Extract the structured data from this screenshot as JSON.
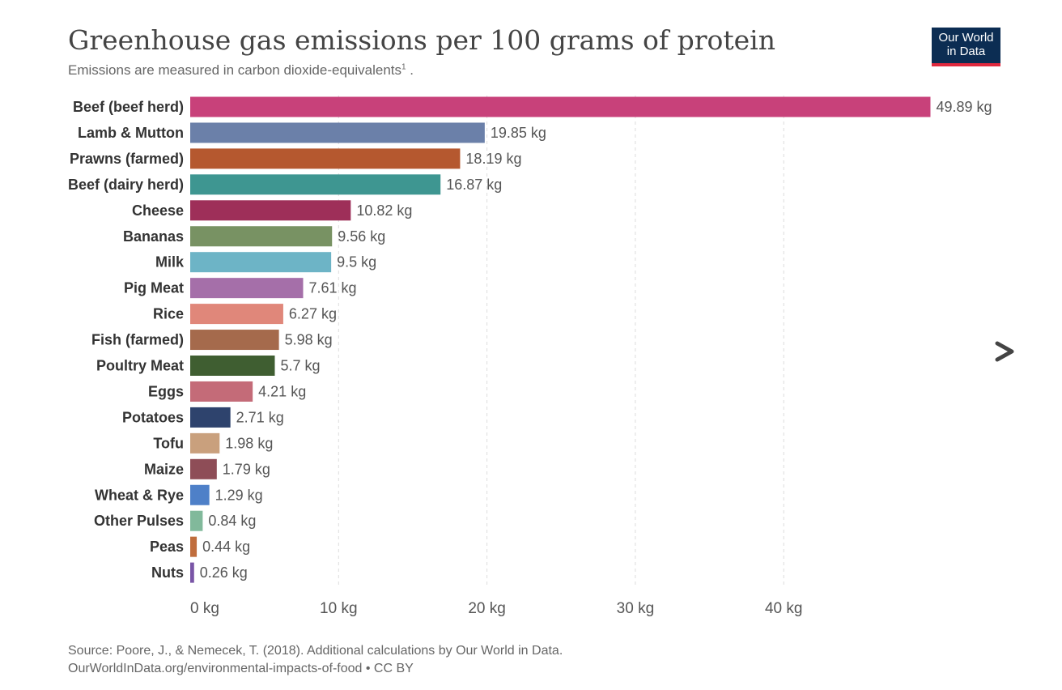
{
  "title": "Greenhouse gas emissions per 100 grams of protein",
  "subtitle": "Emissions are measured in carbon dioxide-equivalents",
  "subtitle_footnote": "1",
  "subtitle_end": " .",
  "logo": {
    "line1": "Our World",
    "line2": "in Data"
  },
  "navigation": {
    "next_icon": "chevron-right-icon"
  },
  "footer": {
    "source": "Source: Poore, J., & Nemecek, T. (2018). Additional calculations by Our World in Data.",
    "url": "OurWorldInData.org/environmental-impacts-of-food • CC BY"
  },
  "chart_data": {
    "type": "bar",
    "orientation": "horizontal",
    "unit": "kg",
    "categories": [
      "Beef (beef herd)",
      "Lamb & Mutton",
      "Prawns (farmed)",
      "Beef (dairy herd)",
      "Cheese",
      "Bananas",
      "Milk",
      "Pig Meat",
      "Rice",
      "Fish (farmed)",
      "Poultry Meat",
      "Eggs",
      "Potatoes",
      "Tofu",
      "Maize",
      "Wheat & Rye",
      "Other Pulses",
      "Peas",
      "Nuts"
    ],
    "values": [
      49.89,
      19.85,
      18.19,
      16.87,
      10.82,
      9.56,
      9.5,
      7.61,
      6.27,
      5.98,
      5.7,
      4.21,
      2.71,
      1.98,
      1.79,
      1.29,
      0.84,
      0.44,
      0.26
    ],
    "value_labels": [
      "49.89 kg",
      "19.85 kg",
      "18.19 kg",
      "16.87 kg",
      "10.82 kg",
      "9.56 kg",
      "9.5 kg",
      "7.61 kg",
      "6.27 kg",
      "5.98 kg",
      "5.7 kg",
      "4.21 kg",
      "2.71 kg",
      "1.98 kg",
      "1.79 kg",
      "1.29 kg",
      "0.84 kg",
      "0.44 kg",
      "0.26 kg"
    ],
    "colors": [
      "#c8417a",
      "#6b80a9",
      "#b5582f",
      "#3e9691",
      "#9e2f59",
      "#789263",
      "#6db4c6",
      "#a56fa9",
      "#e0877a",
      "#a56a4c",
      "#3f5e31",
      "#c46b78",
      "#2e436d",
      "#c9a07d",
      "#8e4d57",
      "#4e80c8",
      "#81b99b",
      "#c06d3d",
      "#7955a6"
    ],
    "xlim": [
      0,
      50
    ],
    "xticks": [
      0,
      10,
      20,
      30,
      40
    ],
    "xtick_labels": [
      "0 kg",
      "10 kg",
      "20 kg",
      "30 kg",
      "40 kg"
    ],
    "grid": true
  }
}
